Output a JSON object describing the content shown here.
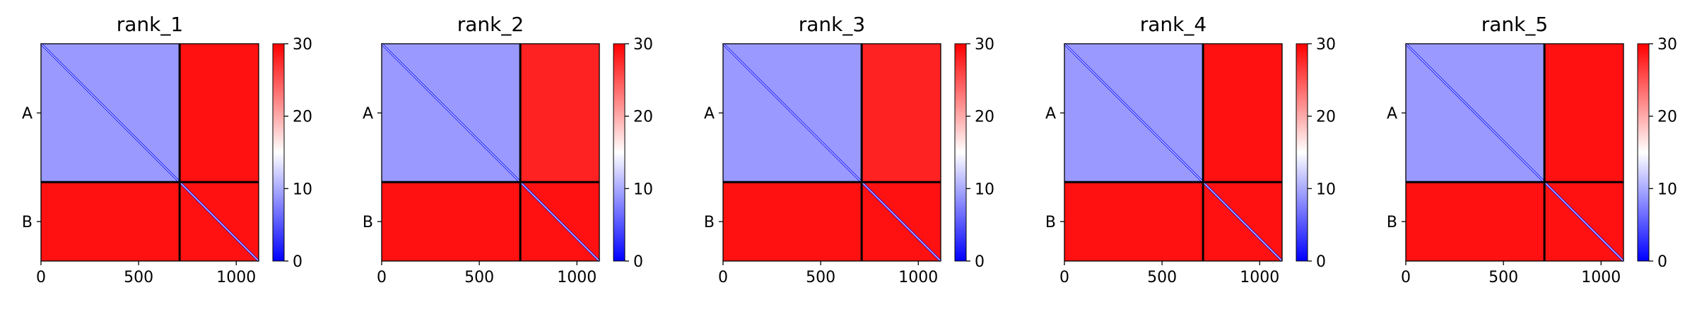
{
  "chart_data": {
    "type": "heatmap",
    "description_kind": "PAE matrices",
    "colormap": [
      "#0000ff",
      "#ffffff",
      "#ff0000"
    ],
    "vmin": 0,
    "vmax": 30,
    "colorbar_ticks": [
      "0",
      "10",
      "20",
      "30"
    ],
    "x_ticks": [
      {
        "value": 0,
        "label": "0"
      },
      {
        "value": 500,
        "label": "500"
      },
      {
        "value": 1000,
        "label": "1000"
      }
    ],
    "xlim": [
      0,
      1115
    ],
    "chain_boundary": 710,
    "chains": [
      {
        "label": "A",
        "start": 0,
        "end": 710
      },
      {
        "label": "B",
        "start": 710,
        "end": 1115
      }
    ],
    "panels": [
      {
        "title": "rank_1",
        "block_AA": 9,
        "block_AB": 29,
        "block_BA": 29,
        "block_BB": 29,
        "diag": 0.5
      },
      {
        "title": "rank_2",
        "block_AA": 9,
        "block_AB": 28,
        "block_BA": 29,
        "block_BB": 29,
        "diag": 0.5
      },
      {
        "title": "rank_3",
        "block_AA": 9,
        "block_AB": 28,
        "block_BA": 29,
        "block_BB": 29,
        "diag": 0.5
      },
      {
        "title": "rank_4",
        "block_AA": 9,
        "block_AB": 29,
        "block_BA": 29,
        "block_BB": 29,
        "diag": 0.5
      },
      {
        "title": "rank_5",
        "block_AA": 9,
        "block_AB": 29,
        "block_BA": 29,
        "block_BB": 29,
        "diag": 0.5
      }
    ]
  }
}
